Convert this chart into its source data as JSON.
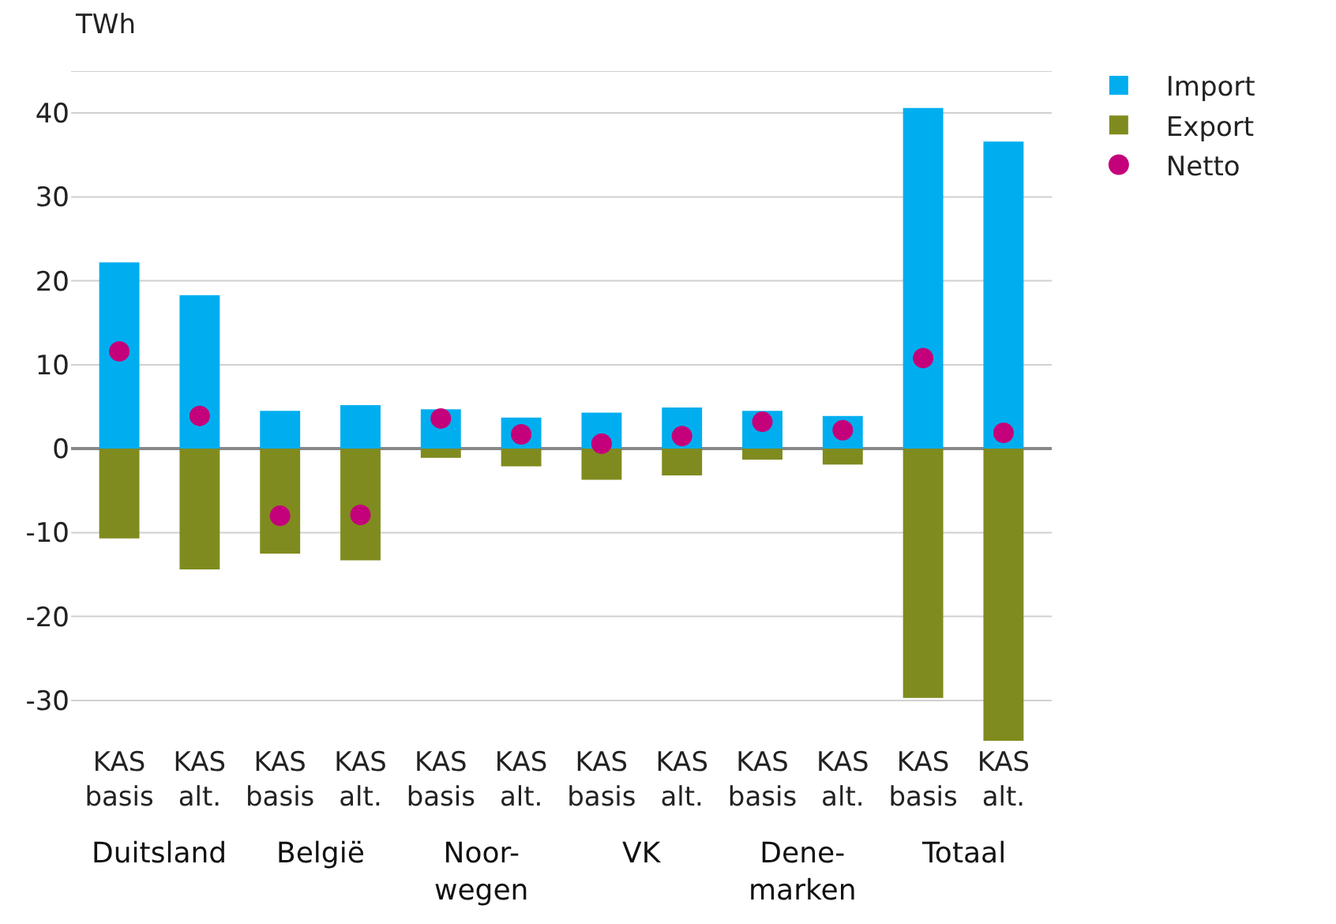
{
  "chart_data": {
    "type": "bar",
    "stacked": true,
    "ylabel": "TWh",
    "categories": [
      "KAS basis",
      "KAS alt.",
      "KAS basis",
      "KAS alt.",
      "KAS basis",
      "KAS alt.",
      "KAS basis",
      "KAS alt.",
      "KAS basis",
      "KAS alt.",
      "KAS basis",
      "KAS alt."
    ],
    "series": [
      {
        "name": "Import",
        "color": "#00aeef",
        "values": [
          22.2,
          18.3,
          4.5,
          5.2,
          4.7,
          3.7,
          4.3,
          4.9,
          4.5,
          3.9,
          40.6,
          36.6
        ]
      },
      {
        "name": "Export",
        "color": "#808b1f",
        "values": [
          -10.7,
          -14.4,
          -12.5,
          -13.3,
          -1.1,
          -2.1,
          -3.7,
          -3.2,
          -1.3,
          -1.9,
          -29.7,
          -34.8
        ]
      },
      {
        "name": "Netto",
        "type": "scatter",
        "color": "#c4007a",
        "values": [
          11.6,
          3.9,
          -8.0,
          -7.9,
          3.6,
          1.7,
          0.6,
          1.5,
          3.2,
          2.2,
          10.8,
          1.9
        ]
      }
    ],
    "annotations": [
      "Duitsland",
      "België",
      "Noor-wegen",
      "VK",
      "Dene-marken",
      "Totaal"
    ],
    "ylim": [
      -35,
      45
    ],
    "yticks": [
      -30,
      -20,
      -10,
      0,
      10,
      20,
      30,
      40,
      {
        "value": 45,
        "label": null
      }
    ],
    "grid": "y",
    "legend": "top right",
    "marker": "circle"
  }
}
